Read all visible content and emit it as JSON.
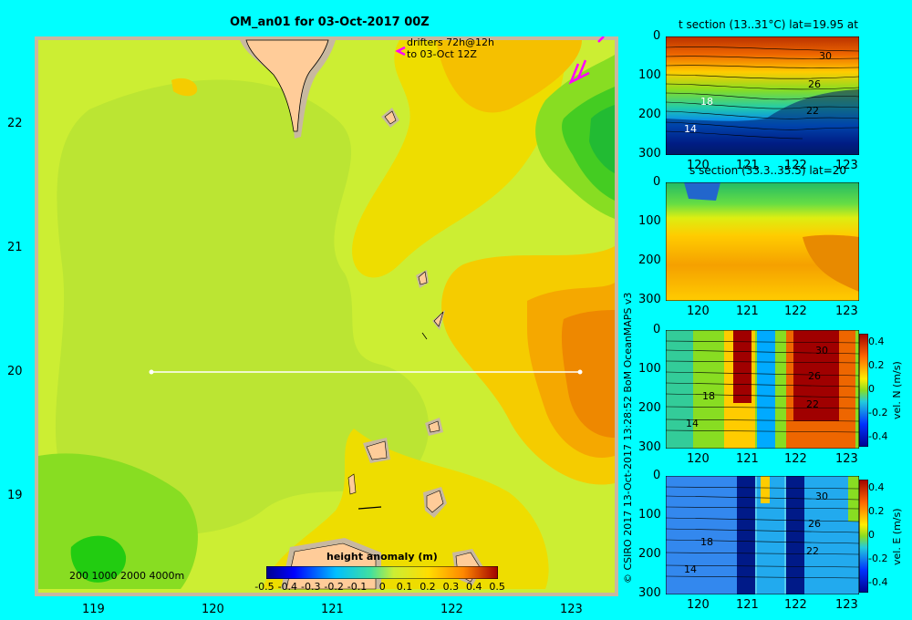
{
  "main_map": {
    "title": "OM_an01 for 03-Oct-2017 00Z",
    "drifters_line1": "drifters 72h@12h",
    "drifters_line2": "to 03-Oct 12Z",
    "x_ticks": [
      "119",
      "120",
      "121",
      "122",
      "123"
    ],
    "y_ticks": [
      "22",
      "21",
      "20",
      "19"
    ],
    "depth_legend": "200  1000  2000  4000m",
    "colorbar_title": "height anomaly  (m)",
    "colorbar_ticks": [
      "-0.5",
      "-0.4",
      "-0.3",
      "-0.2",
      "-0.1",
      "0",
      "0.1",
      "0.2",
      "0.3",
      "0.4",
      "0.5"
    ],
    "credit": "© CSIRO 2017   13-Oct-2017 13:28:52 BoM OceanMAPS v3"
  },
  "panels": {
    "t_title": "t section (13..31°C) lat=19.95 at",
    "s_title": "s section (33.3..35.5) lat=20",
    "v_label": "vel. N  (m/s)",
    "u_label": "vel. E  (m/s)",
    "x_ticks": [
      "120",
      "121",
      "122",
      "123"
    ],
    "y_ticks": [
      "0",
      "100",
      "200",
      "300"
    ],
    "t_contours": [
      "30",
      "26",
      "22",
      "18",
      "14"
    ],
    "vel_ticks": [
      "0.4",
      "0.2",
      "0",
      "-0.2",
      "-0.4"
    ]
  },
  "chart_data": [
    {
      "type": "heatmap",
      "title": "OM_an01 for 03-Oct-2017 00Z",
      "xlim": [
        118.5,
        123.5
      ],
      "ylim": [
        18.3,
        22.7
      ],
      "x_ticks": [
        119,
        120,
        121,
        122,
        123
      ],
      "y_ticks": [
        19,
        20,
        21,
        22
      ],
      "colorbar": {
        "label": "height anomaly  (m)",
        "range": [
          -0.5,
          0.5
        ]
      },
      "section_line": {
        "lat": 20,
        "lon_from": 119.5,
        "lon_to": 123.2
      },
      "features": [
        {
          "name": "high anomaly east",
          "lon": 123.3,
          "lat": 20.1,
          "value": 0.3
        },
        {
          "name": "low anomaly northeast",
          "lon": 123.3,
          "lat": 22.0,
          "value": -0.05
        },
        {
          "name": "low anomaly southwest",
          "lon": 118.9,
          "lat": 18.6,
          "value": 0.0
        }
      ]
    },
    {
      "type": "heatmap",
      "title": "t section (13..31°C) lat=19.95 at",
      "xlim": [
        119.5,
        123.2
      ],
      "ylim": [
        300,
        0
      ],
      "range": [
        13,
        31
      ],
      "contours": [
        30,
        26,
        22,
        18,
        14
      ]
    },
    {
      "type": "heatmap",
      "title": "s section (33.3..35.5) lat=20",
      "xlim": [
        119.5,
        123.2
      ],
      "ylim": [
        300,
        0
      ],
      "range": [
        33.3,
        35.5
      ]
    },
    {
      "type": "heatmap",
      "title": "vel. N  (m/s)",
      "xlim": [
        119.5,
        123.2
      ],
      "ylim": [
        300,
        0
      ],
      "range": [
        -0.4,
        0.4
      ]
    },
    {
      "type": "heatmap",
      "title": "vel. E  (m/s)",
      "xlim": [
        119.5,
        123.2
      ],
      "ylim": [
        300,
        0
      ],
      "range": [
        -0.4,
        0.4
      ]
    }
  ]
}
